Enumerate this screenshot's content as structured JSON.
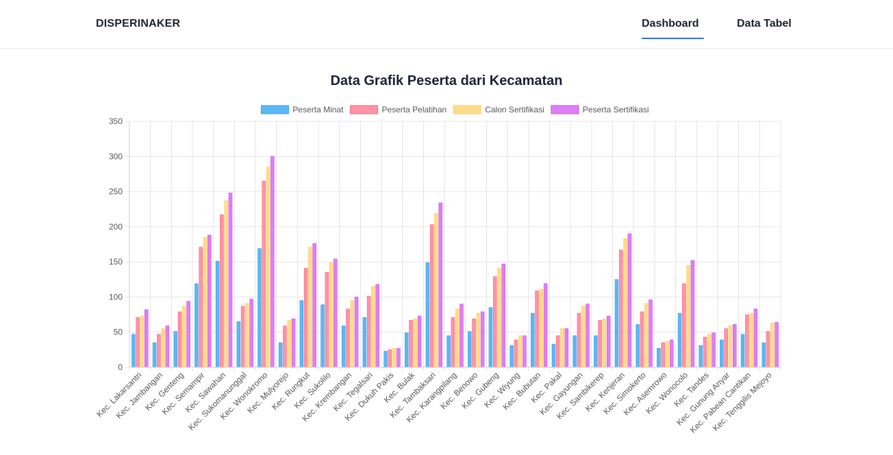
{
  "navbar": {
    "brand": "DISPERINAKER",
    "links": [
      "Dashboard",
      "Data Tabel"
    ],
    "active": "Dashboard",
    "accent_color": "#3b6fe0"
  },
  "chart_data": {
    "type": "bar",
    "title": "Data Grafik Peserta dari Kecamatan",
    "legend_position": "top",
    "grid": true,
    "ylim": [
      0,
      350
    ],
    "yticks": [
      0,
      50,
      100,
      150,
      200,
      250,
      300,
      350
    ],
    "categories": [
      "Kec. Lakarsantri",
      "Kec. Jambangan",
      "Kec. Genteng",
      "Kec. Semampir",
      "Kec. Sawahan",
      "Kec. Sukomanunggal",
      "Kec. Wonokromo",
      "Kec. Mulyorejo",
      "Kec. Rungkut",
      "Kec. Sukolilo",
      "Kec. Krembangan",
      "Kec. Tegalsari",
      "Kec. Dukuh Pakis",
      "Kec. Bulak",
      "Kec. Tambaksari",
      "Kec. Karangpilang",
      "Kec. Benowo",
      "Kec. Gubeng",
      "Kec. Wiyung",
      "Kec. Bubutan",
      "Kec. Pakal",
      "Kec. Gayungan",
      "Kec. Sambikerep",
      "Kec. Kenjeran",
      "Kec. Simokerto",
      "Kec. Asemrowo",
      "Kec. Wonocolo",
      "Kec. Tandes",
      "Kec. Gunung Anyar",
      "Kec. Pabean Cantikan",
      "Kec. Tenggilis Mejoyo"
    ],
    "series": [
      {
        "name": "Peserta Minat",
        "fill": "#5cb8f5",
        "border": "#36a2eb",
        "values": [
          47,
          35,
          51,
          119,
          151,
          65,
          169,
          35,
          95,
          89,
          59,
          71,
          23,
          49,
          149,
          45,
          51,
          85,
          31,
          77,
          33,
          45,
          45,
          125,
          61,
          27,
          77,
          31,
          39,
          47,
          35
        ]
      },
      {
        "name": "Peserta Pelatihan",
        "fill": "#ff93a6",
        "border": "#ff6384",
        "values": [
          71,
          47,
          79,
          171,
          217,
          87,
          265,
          59,
          141,
          135,
          83,
          101,
          25,
          67,
          203,
          71,
          69,
          129,
          39,
          109,
          45,
          77,
          67,
          167,
          79,
          35,
          119,
          43,
          55,
          75,
          51
        ]
      },
      {
        "name": "Calon Sertifikasi",
        "fill": "#ffdc8a",
        "border": "#ffce56",
        "values": [
          73,
          55,
          87,
          185,
          237,
          91,
          285,
          67,
          171,
          149,
          95,
          115,
          27,
          69,
          219,
          83,
          77,
          141,
          45,
          111,
          55,
          87,
          69,
          183,
          91,
          37,
          145,
          47,
          59,
          77,
          63
        ]
      },
      {
        "name": "Peserta Sertifikasi",
        "fill": "#df7ff7",
        "border": "#c94de8",
        "values": [
          82,
          59,
          94,
          188,
          248,
          97,
          300,
          69,
          176,
          154,
          100,
          118,
          27,
          73,
          234,
          90,
          79,
          147,
          45,
          119,
          55,
          90,
          73,
          190,
          96,
          39,
          152,
          49,
          61,
          83,
          64
        ]
      }
    ]
  }
}
